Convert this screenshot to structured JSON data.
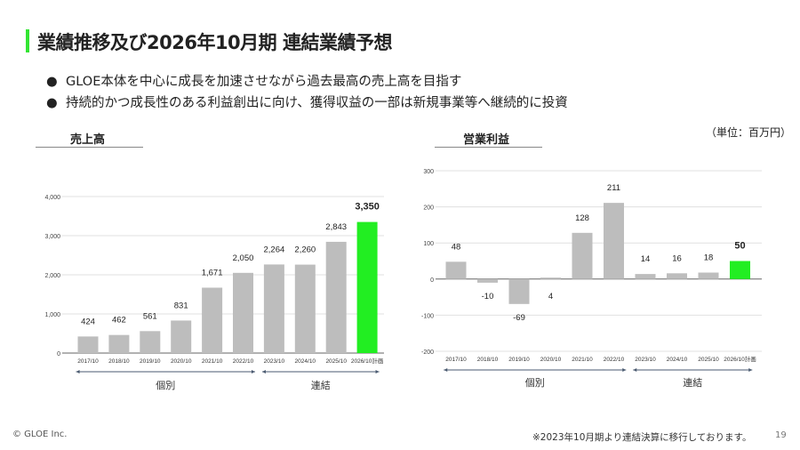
{
  "header": {
    "title": "業績推移及び2026年10月期 連結業績予想"
  },
  "bullets": [
    "GLOE本体を中心に成長を加速させながら過去最高の売上高を目指す",
    "持続的かつ成長性のある利益創出に向け、獲得収益の一部は新規事業等へ継続的に投資"
  ],
  "bullet_symbol": "●",
  "unit_label": "（単位：百万円）",
  "footer": {
    "copyright": "© GLOE Inc.",
    "footnote": "※2023年10月期より連結決算に移行しております。",
    "page_number": "19"
  },
  "colors": {
    "accent": "#22ee22",
    "bar": "#bdbdbd",
    "grid": "#e0e0e0"
  },
  "chart_data": [
    {
      "type": "bar",
      "title": "売上高",
      "categories": [
        "2017/10",
        "2018/10",
        "2019/10",
        "2020/10",
        "2021/10",
        "2022/10",
        "2023/10",
        "2024/10",
        "2025/10",
        "2026/10計画"
      ],
      "values": [
        424,
        462,
        561,
        831,
        1671,
        2050,
        2264,
        2260,
        2843,
        3350
      ],
      "value_labels": [
        "424",
        "462",
        "561",
        "831",
        "1,671",
        "2,050",
        "2,264",
        "2,260",
        "2,843",
        "3,350"
      ],
      "highlight_index": 9,
      "ylim": [
        0,
        4000
      ],
      "yticks": [
        0,
        1000,
        2000,
        3000,
        4000
      ],
      "ytick_labels": [
        "0",
        "1,000",
        "2,000",
        "3,000",
        "4,000"
      ],
      "groups": [
        {
          "label": "個別",
          "from": 0,
          "to": 5
        },
        {
          "label": "連結",
          "from": 6,
          "to": 9
        }
      ],
      "grid": true
    },
    {
      "type": "bar",
      "title": "営業利益",
      "categories": [
        "2017/10",
        "2018/10",
        "2019/10",
        "2020/10",
        "2021/10",
        "2022/10",
        "2023/10",
        "2024/10",
        "2025/10",
        "2026/10計画"
      ],
      "values": [
        48,
        -10,
        -69,
        4,
        128,
        211,
        14,
        16,
        18,
        50
      ],
      "value_labels": [
        "48",
        "-10",
        "-69",
        "4",
        "128",
        "211",
        "14",
        "16",
        "18",
        "50"
      ],
      "highlight_index": 9,
      "ylim": [
        -200,
        300
      ],
      "yticks": [
        -200,
        -100,
        0,
        100,
        200,
        300
      ],
      "ytick_labels": [
        "-200",
        "-100",
        "0",
        "100",
        "200",
        "300"
      ],
      "groups": [
        {
          "label": "個別",
          "from": 0,
          "to": 5
        },
        {
          "label": "連結",
          "from": 6,
          "to": 9
        }
      ],
      "grid": true
    }
  ]
}
